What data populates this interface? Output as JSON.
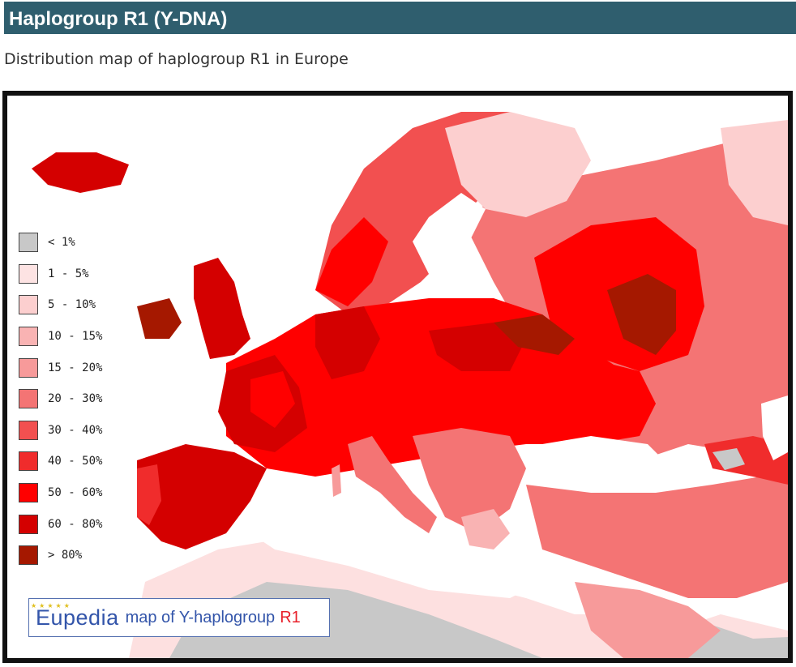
{
  "header": {
    "title": "Haplogroup R1 (Y-DNA)"
  },
  "subtitle": "Distribution map of haplogroup R1 in Europe",
  "map": {
    "legend": [
      {
        "label": "< 1%",
        "color": "#c8c8c8"
      },
      {
        "label": "1 - 5%",
        "color": "#fde3e3"
      },
      {
        "label": "5 - 10%",
        "color": "#fccfcf"
      },
      {
        "label": "10 - 15%",
        "color": "#f9b3b3"
      },
      {
        "label": "15 - 20%",
        "color": "#f79a9a"
      },
      {
        "label": "20 - 30%",
        "color": "#f47474"
      },
      {
        "label": "30 - 40%",
        "color": "#f25050"
      },
      {
        "label": "40 - 50%",
        "color": "#f02c2c"
      },
      {
        "label": "50 - 60%",
        "color": "#ff0000"
      },
      {
        "label": "60 - 80%",
        "color": "#d40000"
      },
      {
        "label": "> 80%",
        "color": "#a51800"
      }
    ],
    "logo": {
      "brand": "Eupedia",
      "text": "map of Y-haplogroup",
      "highlight": "R1"
    }
  }
}
